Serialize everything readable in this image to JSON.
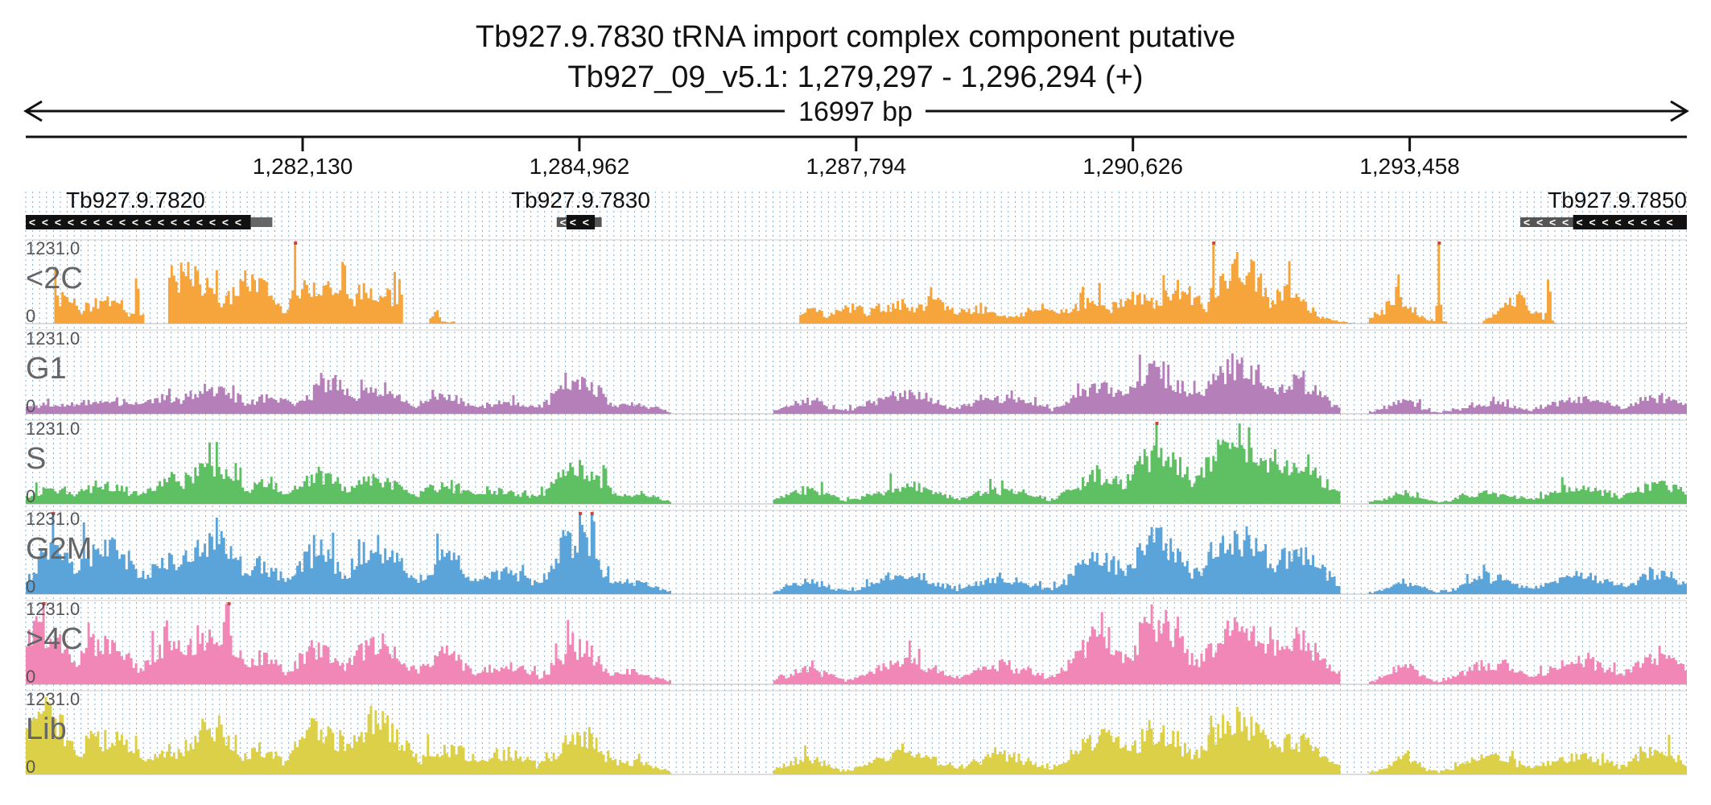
{
  "title": {
    "line1": "Tb927.9.7830  tRNA import complex component  putative",
    "line2": "Tb927_09_v5.1: 1,279,297 - 1,296,294 (+)"
  },
  "span_label": "16997 bp",
  "chart_data": {
    "type": "area",
    "region": {
      "chrom": "Tb927_09_v5.1",
      "start": 1279297,
      "end": 1296294,
      "strand": "+"
    },
    "x_ticks": [
      {
        "pos": 1282130,
        "label": "1,282,130"
      },
      {
        "pos": 1284962,
        "label": "1,284,962"
      },
      {
        "pos": 1287794,
        "label": "1,287,794"
      },
      {
        "pos": 1290626,
        "label": "1,290,626"
      },
      {
        "pos": 1293458,
        "label": "1,293,458"
      }
    ],
    "grid": true,
    "genes": [
      {
        "name": "Tb927.9.7820",
        "start": 1279297,
        "end": 1281600,
        "strand": "-",
        "utr_end": 1281520
      },
      {
        "name": "Tb927.9.7830",
        "start": 1284830,
        "end": 1285120,
        "strand": "-",
        "thin_start": 1284730,
        "thin_end": 1285190
      },
      {
        "name": "Tb927.9.7850",
        "start": 1295130,
        "end": 1296294,
        "strand": "-",
        "thin_start": 1294590
      }
    ],
    "ymax": 1231.0,
    "ymax_label": "1231.0",
    "ymin_label": "0",
    "tracks": [
      {
        "name": "<2C",
        "color": "#F5A53C"
      },
      {
        "name": "G1",
        "color": "#B57FBA"
      },
      {
        "name": "S",
        "color": "#5FBF63"
      },
      {
        "name": "G2M",
        "color": "#5BA4DA"
      },
      {
        "name": ">4C",
        "color": "#F187B7"
      },
      {
        "name": "Lib",
        "color": "#DCD048"
      }
    ],
    "clip_color": "#D0453A",
    "series": [
      {
        "name": "<2C",
        "peaks": [
          [
            1279590,
            1231,
            15
          ],
          [
            1279680,
            430,
            150
          ],
          [
            1280100,
            380,
            200
          ],
          [
            1280430,
            1231,
            15
          ],
          [
            1280780,
            1231,
            15
          ],
          [
            1280950,
            820,
            240
          ],
          [
            1281250,
            1231,
            20
          ],
          [
            1281600,
            720,
            220
          ],
          [
            1282050,
            1231,
            15
          ],
          [
            1282300,
            680,
            260
          ],
          [
            1282550,
            1231,
            15
          ],
          [
            1282860,
            560,
            280
          ],
          [
            1283130,
            1231,
            15
          ],
          [
            1283500,
            180,
            30
          ],
          [
            1287300,
            220,
            200
          ],
          [
            1287750,
            260,
            200
          ],
          [
            1288200,
            300,
            250
          ],
          [
            1288600,
            350,
            180
          ],
          [
            1289050,
            250,
            200
          ],
          [
            1289700,
            240,
            220
          ],
          [
            1290200,
            330,
            280
          ],
          [
            1290650,
            420,
            250
          ],
          [
            1291100,
            560,
            230
          ],
          [
            1291450,
            1231,
            15
          ],
          [
            1291650,
            1231,
            15
          ],
          [
            1291730,
            950,
            220
          ],
          [
            1292200,
            520,
            200
          ],
          [
            1293350,
            380,
            150
          ],
          [
            1293350,
            1231,
            15
          ],
          [
            1293760,
            1231,
            15
          ],
          [
            1294550,
            420,
            140
          ],
          [
            1294880,
            1231,
            15
          ],
          [
            1295310,
            1231,
            15
          ]
        ],
        "zero_ranges": [
          [
            1279297,
            1279580
          ],
          [
            1280500,
            1280760
          ],
          [
            1283150,
            1283420
          ],
          [
            1283700,
            1287220
          ],
          [
            1292900,
            1293050
          ],
          [
            1293850,
            1294200
          ],
          [
            1294950,
            1296294
          ]
        ]
      },
      {
        "name": "G1",
        "peaks": [
          [
            1279500,
            120,
            300
          ],
          [
            1280100,
            200,
            400
          ],
          [
            1280700,
            260,
            200
          ],
          [
            1281200,
            380,
            300
          ],
          [
            1281800,
            250,
            200
          ],
          [
            1282400,
            520,
            200
          ],
          [
            1282900,
            360,
            250
          ],
          [
            1283600,
            250,
            250
          ],
          [
            1284200,
            160,
            300
          ],
          [
            1284950,
            600,
            220
          ],
          [
            1285500,
            150,
            200
          ],
          [
            1287300,
            200,
            200
          ],
          [
            1288300,
            320,
            300
          ],
          [
            1289300,
            250,
            300
          ],
          [
            1290300,
            450,
            250
          ],
          [
            1290900,
            700,
            250
          ],
          [
            1291700,
            800,
            300
          ],
          [
            1292300,
            500,
            250
          ],
          [
            1293400,
            200,
            150
          ],
          [
            1294300,
            150,
            250
          ],
          [
            1295200,
            220,
            300
          ],
          [
            1296000,
            250,
            250
          ]
        ],
        "zero_ranges": [
          [
            1285900,
            1286950
          ],
          [
            1292750,
            1293050
          ]
        ]
      },
      {
        "name": "S",
        "peaks": [
          [
            1279600,
            250,
            200
          ],
          [
            1280100,
            300,
            300
          ],
          [
            1280800,
            400,
            200
          ],
          [
            1281200,
            600,
            250
          ],
          [
            1281700,
            300,
            200
          ],
          [
            1282300,
            500,
            200
          ],
          [
            1282900,
            400,
            250
          ],
          [
            1283600,
            280,
            250
          ],
          [
            1284200,
            200,
            300
          ],
          [
            1284950,
            550,
            250
          ],
          [
            1285500,
            180,
            200
          ],
          [
            1287300,
            220,
            200
          ],
          [
            1288300,
            280,
            300
          ],
          [
            1289300,
            220,
            300
          ],
          [
            1290300,
            500,
            250
          ],
          [
            1290900,
            900,
            250
          ],
          [
            1291700,
            1100,
            300
          ],
          [
            1292300,
            700,
            250
          ],
          [
            1293400,
            150,
            150
          ],
          [
            1294300,
            180,
            250
          ],
          [
            1295200,
            260,
            300
          ],
          [
            1296000,
            300,
            250
          ]
        ],
        "zero_ranges": [
          [
            1285900,
            1286950
          ],
          [
            1292750,
            1293050
          ]
        ]
      },
      {
        "name": "G2M",
        "peaks": [
          [
            1279600,
            700,
            200
          ],
          [
            1280100,
            800,
            250
          ],
          [
            1280800,
            600,
            250
          ],
          [
            1281200,
            1000,
            250
          ],
          [
            1281700,
            500,
            200
          ],
          [
            1282300,
            750,
            200
          ],
          [
            1282900,
            800,
            250
          ],
          [
            1283600,
            600,
            200
          ],
          [
            1284200,
            350,
            250
          ],
          [
            1284950,
            950,
            200
          ],
          [
            1285500,
            200,
            200
          ],
          [
            1287300,
            180,
            200
          ],
          [
            1288300,
            300,
            300
          ],
          [
            1289300,
            250,
            300
          ],
          [
            1290300,
            600,
            250
          ],
          [
            1290900,
            900,
            250
          ],
          [
            1291700,
            1000,
            300
          ],
          [
            1292300,
            700,
            250
          ],
          [
            1293400,
            200,
            150
          ],
          [
            1294300,
            250,
            250
          ],
          [
            1295200,
            280,
            300
          ],
          [
            1296000,
            320,
            250
          ]
        ],
        "zero_ranges": [
          [
            1285900,
            1286950
          ],
          [
            1292750,
            1293050
          ]
        ]
      },
      {
        "name": ">4C",
        "peaks": [
          [
            1279500,
            900,
            250
          ],
          [
            1280100,
            700,
            250
          ],
          [
            1280800,
            600,
            250
          ],
          [
            1281200,
            900,
            250
          ],
          [
            1281700,
            450,
            200
          ],
          [
            1282300,
            600,
            200
          ],
          [
            1282900,
            700,
            250
          ],
          [
            1283600,
            500,
            200
          ],
          [
            1284200,
            300,
            250
          ],
          [
            1284950,
            650,
            200
          ],
          [
            1285500,
            200,
            200
          ],
          [
            1287300,
            250,
            200
          ],
          [
            1288300,
            350,
            300
          ],
          [
            1289300,
            300,
            300
          ],
          [
            1290300,
            800,
            250
          ],
          [
            1290900,
            1100,
            250
          ],
          [
            1291700,
            900,
            300
          ],
          [
            1292300,
            750,
            250
          ],
          [
            1293400,
            300,
            150
          ],
          [
            1294300,
            350,
            250
          ],
          [
            1295200,
            380,
            300
          ],
          [
            1296000,
            450,
            250
          ]
        ],
        "zero_ranges": [
          [
            1285900,
            1286950
          ],
          [
            1292750,
            1293050
          ]
        ]
      },
      {
        "name": "Lib",
        "peaks": [
          [
            1279500,
            1000,
            250
          ],
          [
            1280100,
            600,
            300
          ],
          [
            1280800,
            400,
            250
          ],
          [
            1281200,
            800,
            250
          ],
          [
            1281700,
            400,
            200
          ],
          [
            1282300,
            800,
            200
          ],
          [
            1282900,
            900,
            250
          ],
          [
            1283600,
            450,
            250
          ],
          [
            1284200,
            350,
            250
          ],
          [
            1284950,
            600,
            250
          ],
          [
            1285500,
            200,
            200
          ],
          [
            1287300,
            250,
            200
          ],
          [
            1288300,
            350,
            300
          ],
          [
            1289300,
            300,
            300
          ],
          [
            1290300,
            650,
            250
          ],
          [
            1290900,
            750,
            250
          ],
          [
            1291700,
            900,
            300
          ],
          [
            1292300,
            600,
            250
          ],
          [
            1293400,
            250,
            150
          ],
          [
            1294300,
            280,
            250
          ],
          [
            1295200,
            300,
            300
          ],
          [
            1296000,
            350,
            250
          ]
        ],
        "zero_ranges": [
          [
            1285900,
            1286950
          ],
          [
            1292750,
            1293050
          ]
        ]
      }
    ]
  }
}
